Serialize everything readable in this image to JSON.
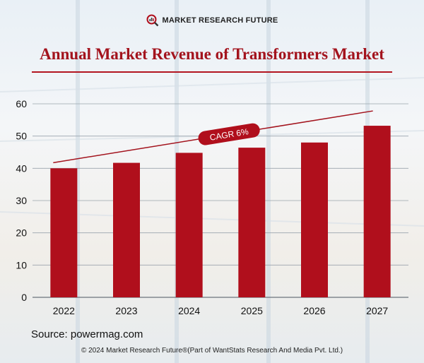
{
  "header": {
    "brand_name": "MARKET RESEARCH FUTURE",
    "logo_icon": "magnifier-chart-icon",
    "title": "Annual Market Revenue of Transformers Market"
  },
  "annotation": {
    "cagr_label": "CAGR 6%"
  },
  "colors": {
    "bar": "#b00f1c",
    "accent": "#a3131d",
    "grid": "#9aa4ad"
  },
  "chart_data": {
    "type": "bar",
    "title": "Annual Market Revenue of Transformers Market",
    "categories": [
      "2022",
      "2023",
      "2024",
      "2025",
      "2026",
      "2027"
    ],
    "values": [
      40,
      41.7,
      44.8,
      46.4,
      48,
      53.2
    ],
    "xlabel": "",
    "ylabel": "",
    "ylim": [
      0,
      60
    ],
    "yticks": [
      "0",
      "10",
      "20",
      "30",
      "40",
      "50",
      "60"
    ],
    "grid": true,
    "trend_line": true
  },
  "source": "Source: powermag.com",
  "footer": "© 2024 Market Research Future®(Part of WantStats Research And Media Pvt. Ltd.)"
}
